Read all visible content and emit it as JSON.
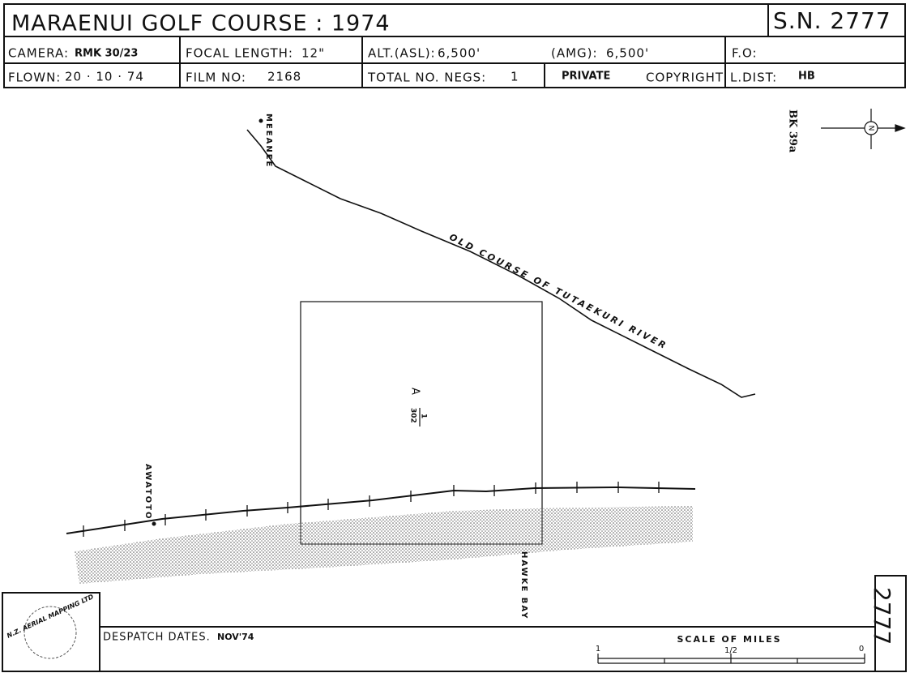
{
  "header": {
    "title": "MARAENUI GOLF COURSE : 1974",
    "sheet": "S.N. 2777",
    "row1": {
      "camera_label": "CAMERA:",
      "camera": "RMK 30/23",
      "focal_label": "FOCAL LENGTH:",
      "focal": "12\"",
      "alt_label": "ALT.(ASL):",
      "alt": "6,500'",
      "amg_label": "(AMG):",
      "amg": "6,500'",
      "fo_label": "F.O:"
    },
    "row2": {
      "flown_label": "FLOWN:",
      "flown": "20 · 10 · 74",
      "film_label": "FILM NO:",
      "film": "2168",
      "negs_label": "TOTAL NO. NEGS:",
      "negs": "1",
      "private": "PRIVATE",
      "copyright": "COPYRIGHT",
      "ldist_label": "L.DIST:",
      "ldist": "HB"
    }
  },
  "map": {
    "meeanee": "MEEANEE",
    "river": "OLD COURSE OF TUTAEKURI RIVER",
    "run": "A",
    "frame_top": "1",
    "frame_bottom": "302",
    "awatoto": "AWATOTO",
    "hawke_bay": "HAWKE BAY",
    "block": "BK 39a",
    "north": "N"
  },
  "footer": {
    "logo": "N.Z. AERIAL MAPPING LTD",
    "despatch_label": "DESPATCH DATES.",
    "despatch": "NOV'74",
    "scale_title": "SCALE OF MILES",
    "scale_left": "1",
    "scale_mid": "1/2",
    "scale_right": "0",
    "sheet_number": "2777"
  }
}
